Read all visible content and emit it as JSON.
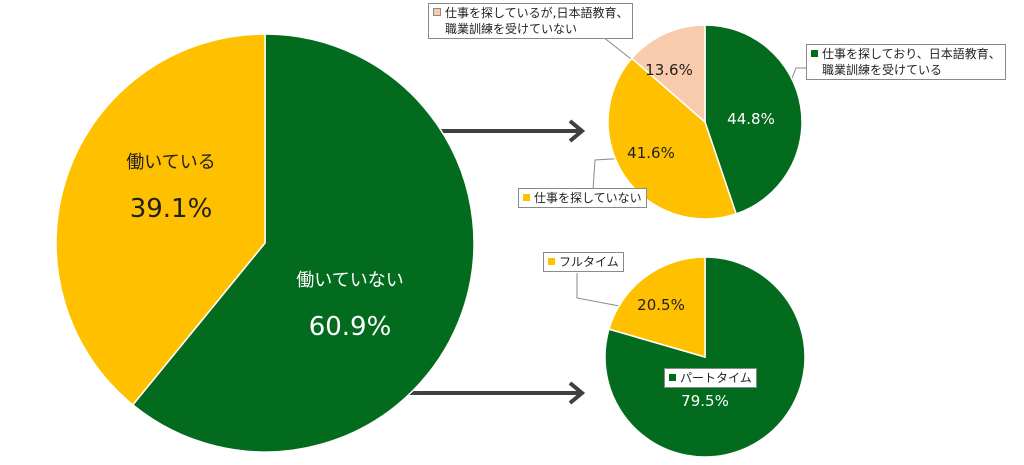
{
  "colors": {
    "green": "#036b1d",
    "yellow": "#ffc000",
    "peach": "#f8cbad",
    "connector": "#404040"
  },
  "chart_data": [
    {
      "type": "pie",
      "slices": [
        {
          "label": "働いている",
          "value": 39.1,
          "value_text": "39.1%",
          "color": "#ffc000"
        },
        {
          "label": "働いていない",
          "value": 60.9,
          "value_text": "60.9%",
          "color": "#036b1d"
        }
      ]
    },
    {
      "type": "pie",
      "slices": [
        {
          "label": "仕事を探しており、日本語教育、職業訓練を受けている",
          "label_lines": [
            "仕事を探しており、日本語教育、",
            "職業訓練を受けている"
          ],
          "value": 44.8,
          "value_text": "44.8%",
          "color": "#036b1d"
        },
        {
          "label": "仕事を探していない",
          "label_lines": [
            "仕事を探していない"
          ],
          "value": 41.6,
          "value_text": "41.6%",
          "color": "#ffc000"
        },
        {
          "label": "仕事を探しているが,日本語教育、職業訓練を受けていない",
          "label_lines": [
            "仕事を探しているが,日本語教育、",
            "職業訓練を受けていない"
          ],
          "value": 13.6,
          "value_text": "13.6%",
          "color": "#f8cbad"
        }
      ]
    },
    {
      "type": "pie",
      "slices": [
        {
          "label": "パートタイム",
          "label_lines": [
            "パートタイム"
          ],
          "value": 79.5,
          "value_text": "79.5%",
          "color": "#036b1d"
        },
        {
          "label": "フルタイム",
          "label_lines": [
            "フルタイム"
          ],
          "value": 20.5,
          "value_text": "20.5%",
          "color": "#ffc000"
        }
      ]
    }
  ]
}
